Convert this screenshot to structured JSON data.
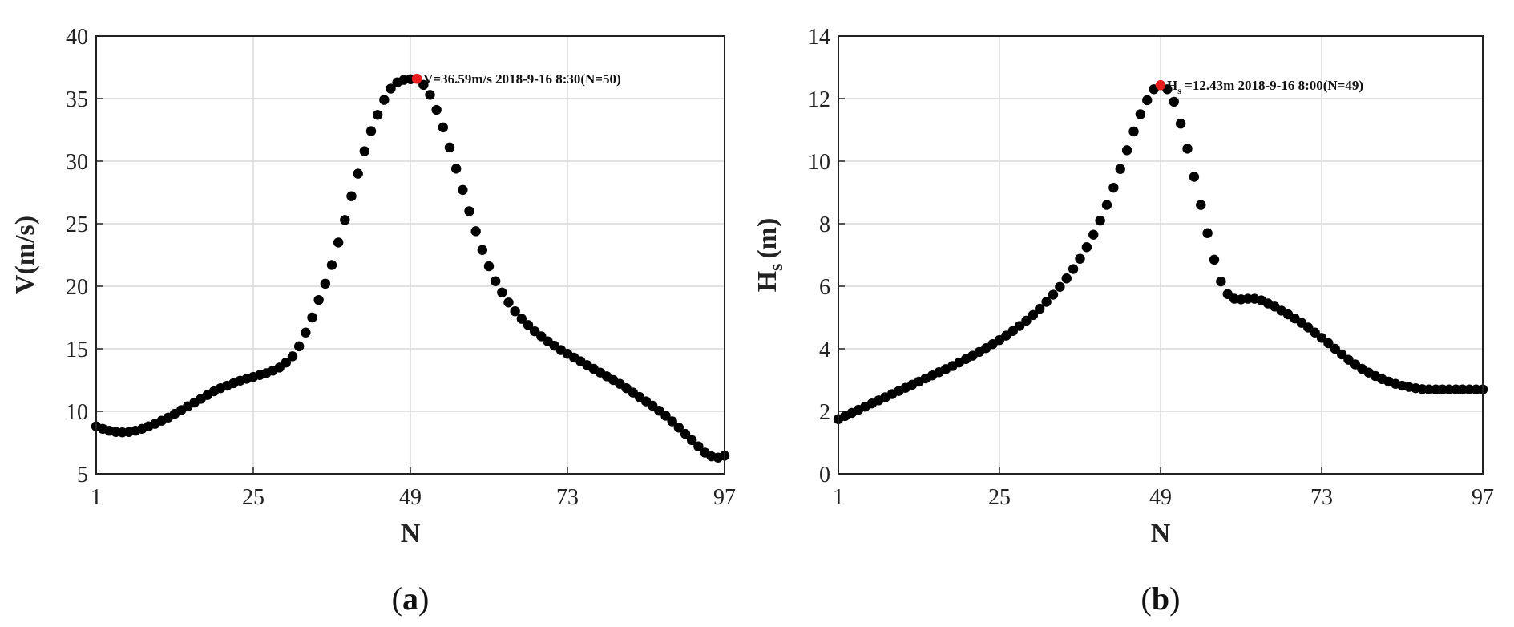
{
  "chart_data": [
    {
      "type": "scatter",
      "panel_label": "a",
      "xlabel": "N",
      "ylabel": "V(m/s)",
      "xlim": [
        1,
        97
      ],
      "ylim": [
        5,
        40
      ],
      "xticks": [
        1,
        25,
        49,
        73,
        97
      ],
      "yticks": [
        5,
        10,
        15,
        20,
        25,
        30,
        35,
        40
      ],
      "grid": true,
      "marker_color": "#000000",
      "highlight_color": "#e81e1e",
      "highlight": {
        "x": 50,
        "y": 36.59
      },
      "annotation": "V=36.59m/s 2018-9-16 8:30(N=50)",
      "series": [
        {
          "x": [
            1,
            2,
            3,
            4,
            5,
            6,
            7,
            8,
            9,
            10,
            11,
            12,
            13,
            14,
            15,
            16,
            17,
            18,
            19,
            20,
            21,
            22,
            23,
            24,
            25,
            26,
            27,
            28,
            29,
            30,
            31,
            32,
            33,
            34,
            35,
            36,
            37,
            38,
            39,
            40,
            41,
            42,
            43,
            44,
            45,
            46,
            47,
            48,
            49,
            50,
            51,
            52,
            53,
            54,
            55,
            56,
            57,
            58,
            59,
            60,
            61,
            62,
            63,
            64,
            65,
            66,
            67,
            68,
            69,
            70,
            71,
            72,
            73,
            74,
            75,
            76,
            77,
            78,
            79,
            80,
            81,
            82,
            83,
            84,
            85,
            86,
            87,
            88,
            89,
            90,
            91,
            92,
            93,
            94,
            95,
            96,
            97
          ],
          "values": [
            8.8,
            8.6,
            8.45,
            8.35,
            8.32,
            8.35,
            8.45,
            8.6,
            8.8,
            9.0,
            9.25,
            9.5,
            9.8,
            10.1,
            10.4,
            10.7,
            11.0,
            11.3,
            11.6,
            11.85,
            12.05,
            12.25,
            12.45,
            12.6,
            12.75,
            12.9,
            13.05,
            13.25,
            13.5,
            13.9,
            14.4,
            15.2,
            16.3,
            17.5,
            18.9,
            20.2,
            21.7,
            23.5,
            25.3,
            27.2,
            29.0,
            30.8,
            32.4,
            33.7,
            34.9,
            35.8,
            36.3,
            36.5,
            36.55,
            36.59,
            36.1,
            35.3,
            34.1,
            32.7,
            31.1,
            29.4,
            27.7,
            26.0,
            24.4,
            22.9,
            21.6,
            20.4,
            19.5,
            18.7,
            18.0,
            17.4,
            16.9,
            16.4,
            16.0,
            15.6,
            15.25,
            14.9,
            14.6,
            14.3,
            14.0,
            13.7,
            13.4,
            13.1,
            12.8,
            12.5,
            12.2,
            11.85,
            11.5,
            11.15,
            10.8,
            10.45,
            10.05,
            9.65,
            9.2,
            8.7,
            8.2,
            7.7,
            7.2,
            6.7,
            6.4,
            6.3,
            6.45
          ]
        }
      ]
    },
    {
      "type": "scatter",
      "panel_label": "b",
      "xlabel": "N",
      "ylabel_main": "H",
      "ylabel_sub": "s",
      "ylabel_unit": "(m)",
      "xlim": [
        1,
        97
      ],
      "ylim": [
        0,
        14
      ],
      "xticks": [
        1,
        25,
        49,
        73,
        97
      ],
      "yticks": [
        0,
        2,
        4,
        6,
        8,
        10,
        12,
        14
      ],
      "grid": true,
      "marker_color": "#000000",
      "highlight_color": "#e81e1e",
      "highlight": {
        "x": 49,
        "y": 12.43
      },
      "annotation_main": "H",
      "annotation_sub": "s",
      "annotation_rest": " =12.43m 2018-9-16 8:00(N=49)",
      "series": [
        {
          "x": [
            1,
            2,
            3,
            4,
            5,
            6,
            7,
            8,
            9,
            10,
            11,
            12,
            13,
            14,
            15,
            16,
            17,
            18,
            19,
            20,
            21,
            22,
            23,
            24,
            25,
            26,
            27,
            28,
            29,
            30,
            31,
            32,
            33,
            34,
            35,
            36,
            37,
            38,
            39,
            40,
            41,
            42,
            43,
            44,
            45,
            46,
            47,
            48,
            49,
            50,
            51,
            52,
            53,
            54,
            55,
            56,
            57,
            58,
            59,
            60,
            61,
            62,
            63,
            64,
            65,
            66,
            67,
            68,
            69,
            70,
            71,
            72,
            73,
            74,
            75,
            76,
            77,
            78,
            79,
            80,
            81,
            82,
            83,
            84,
            85,
            86,
            87,
            88,
            89,
            90,
            91,
            92,
            93,
            94,
            95,
            96,
            97
          ],
          "values": [
            1.75,
            1.85,
            1.95,
            2.05,
            2.15,
            2.25,
            2.35,
            2.45,
            2.55,
            2.65,
            2.75,
            2.85,
            2.95,
            3.05,
            3.15,
            3.25,
            3.35,
            3.45,
            3.56,
            3.67,
            3.78,
            3.9,
            4.02,
            4.15,
            4.28,
            4.42,
            4.57,
            4.73,
            4.9,
            5.08,
            5.28,
            5.5,
            5.73,
            5.98,
            6.25,
            6.55,
            6.88,
            7.25,
            7.65,
            8.1,
            8.6,
            9.15,
            9.75,
            10.35,
            10.95,
            11.5,
            11.95,
            12.3,
            12.43,
            12.3,
            11.9,
            11.2,
            10.4,
            9.5,
            8.6,
            7.7,
            6.85,
            6.15,
            5.75,
            5.6,
            5.58,
            5.6,
            5.6,
            5.55,
            5.45,
            5.35,
            5.22,
            5.1,
            4.97,
            4.83,
            4.68,
            4.52,
            4.35,
            4.18,
            4.0,
            3.82,
            3.65,
            3.5,
            3.36,
            3.24,
            3.13,
            3.03,
            2.95,
            2.88,
            2.82,
            2.78,
            2.74,
            2.71,
            2.7,
            2.7,
            2.7,
            2.7,
            2.7,
            2.7,
            2.7,
            2.7,
            2.7
          ]
        }
      ]
    }
  ]
}
